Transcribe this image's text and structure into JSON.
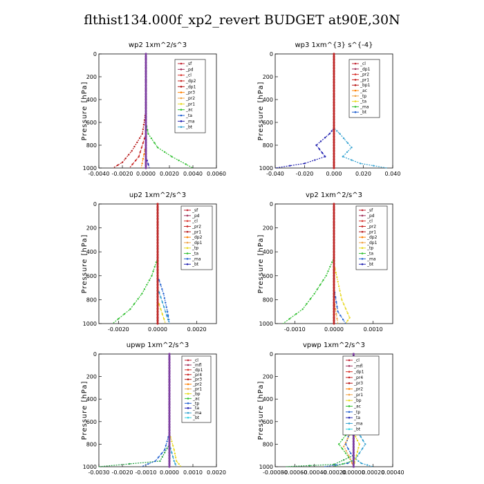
{
  "title": "flthist134.000f_xp2_revert  BUDGET at90E,30N",
  "colors": {
    "sf": "#c0202f",
    "pd": "#a0305a",
    "cl": "#d8302a",
    "dp2": "#c8201e",
    "dp1": "#b81818",
    "pr3": "#ff8000",
    "pr2": "#f0a040",
    "pr1": "#e8d820",
    "bp1": "#c84020",
    "ac": "#30c030",
    "tp": "#2060d0",
    "ta": "#2020b0",
    "ma": "#30a0d0",
    "bt": "#30d0e0",
    "mfl": "#7030a0",
    "pr4": "#ff4040",
    "bp": "#20a040"
  },
  "chart_data": [
    {
      "type": "line",
      "title": "wp2   1xm^2/s^3",
      "ylabel": "Pressure [hPa]",
      "xlim": [
        -0.004,
        0.006
      ],
      "ylim": [
        1000,
        0
      ],
      "xticks": [
        "-0.0040",
        "-0.0020",
        "0.0000",
        "0.0020",
        "0.0040",
        "0.0060"
      ],
      "yticks": [
        "0",
        "200",
        "400",
        "600",
        "800",
        "1000"
      ],
      "legend": [
        "_sf",
        "_pd",
        "_cl",
        "_dp2",
        "_dp1",
        "_pr3",
        "_pr2",
        "_pr1",
        "_ac",
        "_ta",
        "_ma",
        "_bt"
      ],
      "series": [
        {
          "name": "_ac",
          "color": "#30c030",
          "points": [
            [
              0,
              0
            ],
            [
              0,
              400
            ],
            [
              0,
              600
            ],
            [
              0.0002,
              700
            ],
            [
              0.001,
              820
            ],
            [
              0.0022,
              900
            ],
            [
              0.004,
              1000
            ]
          ]
        },
        {
          "name": "_dp1",
          "color": "#b81818",
          "points": [
            [
              0,
              0
            ],
            [
              0,
              500
            ],
            [
              -0.0003,
              700
            ],
            [
              -0.0012,
              850
            ],
            [
              -0.002,
              950
            ],
            [
              -0.0028,
              1000
            ]
          ]
        },
        {
          "name": "_dp2",
          "color": "#c8201e",
          "points": [
            [
              0,
              0
            ],
            [
              0,
              700
            ],
            [
              -0.0006,
              900
            ],
            [
              -0.0014,
              1000
            ]
          ]
        },
        {
          "name": "_pr3",
          "color": "#ff8000",
          "points": [
            [
              0,
              0
            ],
            [
              0,
              800
            ],
            [
              -0.0004,
              1000
            ]
          ]
        },
        {
          "name": "_ta",
          "color": "#2020b0",
          "points": [
            [
              0,
              0
            ],
            [
              0,
              900
            ],
            [
              0.0003,
              1000
            ]
          ]
        },
        {
          "name": "_pd",
          "color": "#a0305a",
          "points": [
            [
              0,
              0
            ],
            [
              0,
              1000
            ]
          ]
        },
        {
          "name": "_bt",
          "color": "#30d0e0",
          "points": [
            [
              0,
              0
            ],
            [
              0,
              1000
            ]
          ]
        },
        {
          "name": "_sf",
          "color": "#7030a0",
          "points": [
            [
              0,
              0
            ],
            [
              0,
              1000
            ]
          ]
        }
      ]
    },
    {
      "type": "line",
      "title": "wp3   1xm^{3} s^{-4}",
      "ylabel": "Pressure [hPa]",
      "xlim": [
        -0.04,
        0.04
      ],
      "ylim": [
        1000,
        0
      ],
      "xticks": [
        "-0.040",
        "-0.020",
        "0.000",
        "0.020",
        "0.040"
      ],
      "yticks": [
        "0",
        "200",
        "400",
        "600",
        "800",
        "1000"
      ],
      "legend": [
        "_cl",
        "_dp1",
        "_pr2",
        "_pr1",
        "_bp1",
        "_ac",
        "_tp",
        "_ta",
        "_ma",
        "_bt"
      ],
      "series": [
        {
          "name": "_ta",
          "color": "#2020b0",
          "points": [
            [
              0,
              0
            ],
            [
              0,
              650
            ],
            [
              -0.003,
              700
            ],
            [
              -0.012,
              800
            ],
            [
              -0.006,
              900
            ],
            [
              -0.02,
              960
            ],
            [
              -0.04,
              1000
            ]
          ]
        },
        {
          "name": "_ma",
          "color": "#30a0d0",
          "points": [
            [
              0,
              0
            ],
            [
              0,
              650
            ],
            [
              0.004,
              700
            ],
            [
              0.012,
              820
            ],
            [
              0.006,
              900
            ],
            [
              0.018,
              960
            ],
            [
              0.036,
              1000
            ]
          ]
        },
        {
          "name": "_cl",
          "color": "#d8302a",
          "points": [
            [
              0,
              0
            ],
            [
              0,
              1000
            ]
          ]
        },
        {
          "name": "_bp1",
          "color": "#c84020",
          "points": [
            [
              0,
              0
            ],
            [
              0,
              1000
            ]
          ]
        },
        {
          "name": "_pr1",
          "color": "#e8d820",
          "points": [
            [
              0,
              0
            ],
            [
              0,
              1000
            ]
          ]
        }
      ]
    },
    {
      "type": "line",
      "title": "up2   1xm^2/s^3",
      "ylabel": "Pressure [hPa]",
      "xlim": [
        -0.003,
        0.003
      ],
      "ylim": [
        1000,
        0
      ],
      "xticks": [
        "-0.0020",
        "0.0000",
        "0.0020"
      ],
      "yticks": [
        "0",
        "200",
        "400",
        "600",
        "800",
        "1000"
      ],
      "legend": [
        "_sf",
        "_pd",
        "_cl",
        "_pr2",
        "_pr1",
        "_dp2",
        "_dp1",
        "_tp",
        "_ta",
        "_ma",
        "_bt"
      ],
      "series": [
        {
          "name": "_dp1",
          "color": "#30c030",
          "points": [
            [
              0,
              0
            ],
            [
              0,
              450
            ],
            [
              -0.0003,
              600
            ],
            [
              -0.0008,
              750
            ],
            [
              -0.0014,
              880
            ],
            [
              -0.0023,
              1000
            ]
          ]
        },
        {
          "name": "_tp",
          "color": "#2060d0",
          "points": [
            [
              0,
              0
            ],
            [
              0,
              600
            ],
            [
              0.0003,
              750
            ],
            [
              0.0005,
              900
            ],
            [
              0.0006,
              1000
            ]
          ]
        },
        {
          "name": "_ma",
          "color": "#30a0d0",
          "points": [
            [
              0,
              0
            ],
            [
              0,
              700
            ],
            [
              0.0004,
              900
            ],
            [
              0.0006,
              1000
            ]
          ]
        },
        {
          "name": "_pr1",
          "color": "#e8d820",
          "points": [
            [
              0,
              0
            ],
            [
              0,
              800
            ],
            [
              0.0004,
              1000
            ]
          ]
        },
        {
          "name": "_pd",
          "color": "#a0305a",
          "points": [
            [
              0,
              0
            ],
            [
              0,
              1000
            ]
          ]
        },
        {
          "name": "_sf",
          "color": "#c0202f",
          "points": [
            [
              0,
              0
            ],
            [
              0,
              1000
            ]
          ]
        }
      ]
    },
    {
      "type": "line",
      "title": "vp2   1xm^2/s^3",
      "ylabel": "Pressure [hPa]",
      "xlim": [
        -0.0015,
        0.0015
      ],
      "ylim": [
        1000,
        0
      ],
      "xticks": [
        "-0.0010",
        "0.0000",
        "0.0010"
      ],
      "yticks": [
        "0",
        "200",
        "400",
        "600",
        "800",
        "1000"
      ],
      "legend": [
        "_sf",
        "_pd",
        "_cl",
        "_pr2",
        "_pr1",
        "_dp2",
        "_dp1",
        "_tp",
        "_ta",
        "_ma",
        "_bt"
      ],
      "series": [
        {
          "name": "_dp1",
          "color": "#30c030",
          "points": [
            [
              0,
              0
            ],
            [
              0,
              450
            ],
            [
              -0.0002,
              600
            ],
            [
              -0.0005,
              750
            ],
            [
              -0.0008,
              880
            ],
            [
              -0.0013,
              1000
            ]
          ]
        },
        {
          "name": "_pr1",
          "color": "#e8d820",
          "points": [
            [
              0,
              0
            ],
            [
              0,
              500
            ],
            [
              0.0001,
              650
            ],
            [
              0.0002,
              800
            ],
            [
              0.0004,
              950
            ],
            [
              0.0003,
              1000
            ]
          ]
        },
        {
          "name": "_tp",
          "color": "#2060d0",
          "points": [
            [
              0,
              0
            ],
            [
              0,
              700
            ],
            [
              0.0001,
              900
            ],
            [
              0.0003,
              1000
            ]
          ]
        },
        {
          "name": "_pr2",
          "color": "#f0a040",
          "points": [
            [
              0,
              0
            ],
            [
              0,
              800
            ],
            [
              0.0001,
              1000
            ]
          ]
        },
        {
          "name": "_pd",
          "color": "#a0305a",
          "points": [
            [
              0,
              0
            ],
            [
              0,
              1000
            ]
          ]
        },
        {
          "name": "_sf",
          "color": "#c0202f",
          "points": [
            [
              0,
              0
            ],
            [
              0,
              1000
            ]
          ]
        }
      ]
    },
    {
      "type": "line",
      "title": "upwp   1xm^2/s^3",
      "ylabel": "Pressure [hPa]",
      "xlim": [
        -0.003,
        0.002
      ],
      "ylim": [
        1000,
        0
      ],
      "xticks": [
        "-0.0030",
        "-0.0020",
        "-0.0010",
        "0.0000",
        "0.0010",
        "0.0020"
      ],
      "yticks": [
        "0",
        "200",
        "400",
        "600",
        "800",
        "1000"
      ],
      "legend": [
        "_cl",
        "_mfl",
        "_dp1",
        "_pr4",
        "_pr3",
        "_pr2",
        "_pr1",
        "_bp",
        "_ac",
        "_tp",
        "_ta",
        "_ma",
        "_bt"
      ],
      "series": [
        {
          "name": "_bp",
          "color": "#20a040",
          "points": [
            [
              0,
              0
            ],
            [
              0,
              800
            ],
            [
              -0.0004,
              950
            ],
            [
              -0.003,
              1000
            ]
          ]
        },
        {
          "name": "_tp",
          "color": "#2060d0",
          "points": [
            [
              0,
              0
            ],
            [
              0,
              700
            ],
            [
              -0.0002,
              850
            ],
            [
              -0.0006,
              950
            ],
            [
              -0.0012,
              1000
            ]
          ]
        },
        {
          "name": "_pr1",
          "color": "#e8d820",
          "points": [
            [
              0,
              0
            ],
            [
              0,
              700
            ],
            [
              0.0002,
              850
            ],
            [
              0.0003,
              950
            ],
            [
              0.0005,
              1000
            ]
          ]
        },
        {
          "name": "_ma",
          "color": "#30a0d0",
          "points": [
            [
              0,
              0
            ],
            [
              0,
              800
            ],
            [
              0.0002,
              950
            ],
            [
              0.0003,
              1000
            ]
          ]
        },
        {
          "name": "_mfl",
          "color": "#7030a0",
          "points": [
            [
              0,
              0
            ],
            [
              0,
              1000
            ]
          ]
        },
        {
          "name": "_dp1",
          "color": "#b81818",
          "points": [
            [
              0,
              0
            ],
            [
              0,
              1000
            ]
          ]
        }
      ]
    },
    {
      "type": "line",
      "title": "vpwp   1xm^2/s^3",
      "ylabel": "Pressure [hPa]",
      "xlim": [
        -0.0008,
        0.0004
      ],
      "ylim": [
        1000,
        0
      ],
      "xticks": [
        "-0.00080",
        "-0.00060",
        "-0.00040",
        "-0.00020",
        "0.00000",
        "0.00020",
        "0.00040"
      ],
      "yticks": [
        "0",
        "200",
        "400",
        "600",
        "800",
        "1000"
      ],
      "legend": [
        "_cl",
        "_mfl",
        "_dp1",
        "_pr4",
        "_pr3",
        "_pr2",
        "_pr1",
        "_bp",
        "_ac",
        "_tp",
        "_ta",
        "_ma",
        "_bt"
      ],
      "series": [
        {
          "name": "_tp",
          "color": "#2060d0",
          "points": [
            [
              0,
              0
            ],
            [
              0,
              600
            ],
            [
              -4e-05,
              700
            ],
            [
              -8e-05,
              800
            ],
            [
              -3e-05,
              880
            ],
            [
              2e-05,
              930
            ],
            [
              -6e-05,
              970
            ],
            [
              -0.0003,
              1000
            ]
          ]
        },
        {
          "name": "_ma",
          "color": "#30a0d0",
          "points": [
            [
              0,
              0
            ],
            [
              0,
              600
            ],
            [
              5e-05,
              700
            ],
            [
              0.00012,
              800
            ],
            [
              6e-05,
              880
            ],
            [
              2e-05,
              930
            ],
            [
              8e-05,
              970
            ],
            [
              0.0002,
              1000
            ]
          ]
        },
        {
          "name": "_ac",
          "color": "#30c030",
          "points": [
            [
              0,
              0
            ],
            [
              0,
              650
            ],
            [
              -8e-05,
              720
            ],
            [
              -0.00015,
              800
            ],
            [
              -8e-05,
              880
            ],
            [
              -2e-05,
              950
            ],
            [
              -0.0002,
              1000
            ]
          ]
        },
        {
          "name": "_pr2",
          "color": "#f0a040",
          "points": [
            [
              0,
              0
            ],
            [
              0,
              650
            ],
            [
              -6e-05,
              750
            ],
            [
              -0.0001,
              820
            ],
            [
              -5e-05,
              900
            ],
            [
              0,
              1000
            ]
          ]
        },
        {
          "name": "_pr1",
          "color": "#e8d820",
          "points": [
            [
              0,
              0
            ],
            [
              0,
              700
            ],
            [
              6e-05,
              800
            ],
            [
              3e-05,
              900
            ],
            [
              0,
              1000
            ]
          ]
        },
        {
          "name": "_bp",
          "color": "#20a040",
          "points": [
            [
              0,
              0
            ],
            [
              0,
              900
            ],
            [
              -0.0002,
              980
            ],
            [
              -0.0007,
              1000
            ]
          ]
        },
        {
          "name": "_mfl",
          "color": "#7030a0",
          "points": [
            [
              0,
              0
            ],
            [
              0,
              1000
            ]
          ]
        },
        {
          "name": "_cl",
          "color": "#d8302a",
          "points": [
            [
              0,
              0
            ],
            [
              0,
              1000
            ]
          ]
        }
      ]
    }
  ]
}
